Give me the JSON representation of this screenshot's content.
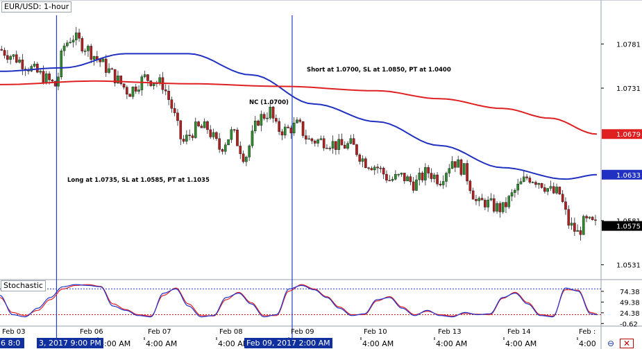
{
  "symbol_title": "EUR/USD: 1-hour",
  "stochastic_title": "Stochastic",
  "annotations": {
    "short": "Short at 1.0700,  SL at 1.0850, PT at 1.0400",
    "nc": "NC (1.0700)",
    "long": "Long at 1.0735, SL at 1.0585, PT at 1.1035"
  },
  "cursor_labels": [
    "3, 2017 9:00 PM",
    "Feb 09, 2017 2:00 AM"
  ],
  "cursor_label_left_fragment": "6 8:0",
  "icons": [
    "sync-icon",
    "close-icon"
  ],
  "colors": {
    "bull_candle": "#2e8b2e",
    "bear_candle": "#b02020",
    "ma_blue": "#2030c0",
    "ma_red": "#e02020",
    "cursor_line": "#2040c0",
    "stoch_k": "#2030d0",
    "stoch_d": "#e02020"
  },
  "chart_data": [
    {
      "type": "candlestick",
      "title": "EUR/USD: 1-hour",
      "y_axis": {
        "ticks": [
          "1.0781",
          "1.0731",
          "1.0581",
          "1.0531"
        ],
        "ylim": [
          1.0515,
          1.083
        ]
      },
      "x_axis": {
        "ticks": [
          "Feb 03",
          "Feb 06",
          "Feb 07",
          "Feb 08",
          "Feb 09",
          "Feb 10",
          "Feb 13",
          "Feb 14",
          "Feb :"
        ],
        "bottom_ticks": [
          "4:00 AM",
          "4:00 AM",
          "4:00 AM",
          "4:00 AM",
          "4:00 AM",
          "4:00 AM",
          "4:00 AM",
          "4:00"
        ]
      },
      "price_tags": [
        {
          "label": "1.0679",
          "value": 1.0679,
          "color": "#e02020"
        },
        {
          "label": "1.0633",
          "value": 1.0633,
          "color": "#2030c0"
        },
        {
          "label": "1.0575",
          "value": 1.0575,
          "color": "#000000"
        }
      ],
      "series": [
        {
          "name": "blue MA",
          "color": "#2030c0",
          "x": [
            0,
            20,
            40,
            60,
            80,
            100,
            120,
            140,
            160,
            180,
            190
          ],
          "values": [
            1.075,
            1.0754,
            1.077,
            1.077,
            1.0746,
            1.0713,
            1.0693,
            1.0666,
            1.0641,
            1.0628,
            1.0633
          ]
        },
        {
          "name": "red MA",
          "color": "#e02020",
          "x": [
            0,
            30,
            60,
            90,
            120,
            140,
            160,
            175,
            190
          ],
          "values": [
            1.0735,
            1.0739,
            1.0736,
            1.0733,
            1.0728,
            1.0719,
            1.0708,
            1.0697,
            1.0679
          ]
        }
      ],
      "close_path": {
        "x": [
          0,
          5,
          10,
          18,
          20,
          23,
          28,
          33,
          38,
          41,
          46,
          52,
          55,
          58,
          62,
          66,
          70,
          74,
          78,
          82,
          84,
          86,
          88,
          91,
          95,
          98,
          104,
          108,
          112,
          116,
          120,
          124,
          128,
          132,
          136,
          140,
          144,
          148,
          152,
          154,
          157,
          160,
          164,
          168,
          172,
          176,
          178,
          181,
          184,
          186,
          188,
          190
        ],
        "values": [
          1.0775,
          1.0765,
          1.0753,
          1.0733,
          1.0777,
          1.079,
          1.0775,
          1.0757,
          1.0738,
          1.0726,
          1.0743,
          1.0735,
          1.0706,
          1.0668,
          1.0685,
          1.0686,
          1.0662,
          1.0682,
          1.0651,
          1.0695,
          1.07,
          1.0705,
          1.0685,
          1.0683,
          1.069,
          1.0672,
          1.0671,
          1.0665,
          1.0667,
          1.0648,
          1.0642,
          1.0627,
          1.0631,
          1.0622,
          1.0637,
          1.0627,
          1.065,
          1.0637,
          1.0598,
          1.0603,
          1.0597,
          1.0594,
          1.0615,
          1.0631,
          1.0625,
          1.0612,
          1.0613,
          1.0578,
          1.0566,
          1.058,
          1.0578,
          1.0575
        ]
      },
      "vertical_lines_at_x": [
        18,
        93
      ]
    },
    {
      "type": "line",
      "title": "Stochastic",
      "y_axis": {
        "ticks": [
          "74.38",
          "49.38",
          "24.38",
          "-0.62"
        ],
        "ylim": [
          -5,
          100
        ]
      },
      "levels": [
        80,
        20
      ],
      "series": [
        {
          "name": "%K",
          "color": "#2030d0"
        },
        {
          "name": "%D",
          "color": "#e02020"
        }
      ],
      "x": [
        0,
        4,
        8,
        12,
        16,
        20,
        24,
        28,
        32,
        36,
        40,
        44,
        48,
        52,
        56,
        60,
        64,
        68,
        72,
        76,
        80,
        84,
        88,
        92,
        96,
        100,
        104,
        108,
        112,
        116,
        120,
        124,
        128,
        132,
        136,
        140,
        144,
        148,
        152,
        156,
        160,
        164,
        168,
        172,
        176,
        180,
        184,
        188,
        190
      ],
      "k_values": [
        65,
        20,
        15,
        35,
        60,
        85,
        90,
        88,
        85,
        40,
        30,
        18,
        15,
        70,
        80,
        40,
        15,
        18,
        60,
        70,
        45,
        15,
        20,
        80,
        88,
        78,
        60,
        35,
        18,
        22,
        55,
        60,
        35,
        18,
        30,
        18,
        15,
        25,
        20,
        22,
        60,
        70,
        45,
        18,
        15,
        82,
        75,
        22,
        20
      ],
      "d_values": [
        60,
        25,
        18,
        30,
        55,
        80,
        88,
        90,
        86,
        45,
        32,
        20,
        17,
        65,
        82,
        45,
        18,
        17,
        55,
        72,
        48,
        18,
        18,
        75,
        90,
        80,
        62,
        38,
        20,
        20,
        52,
        62,
        38,
        20,
        28,
        20,
        17,
        23,
        21,
        20,
        58,
        72,
        48,
        20,
        17,
        78,
        77,
        25,
        22
      ]
    }
  ]
}
